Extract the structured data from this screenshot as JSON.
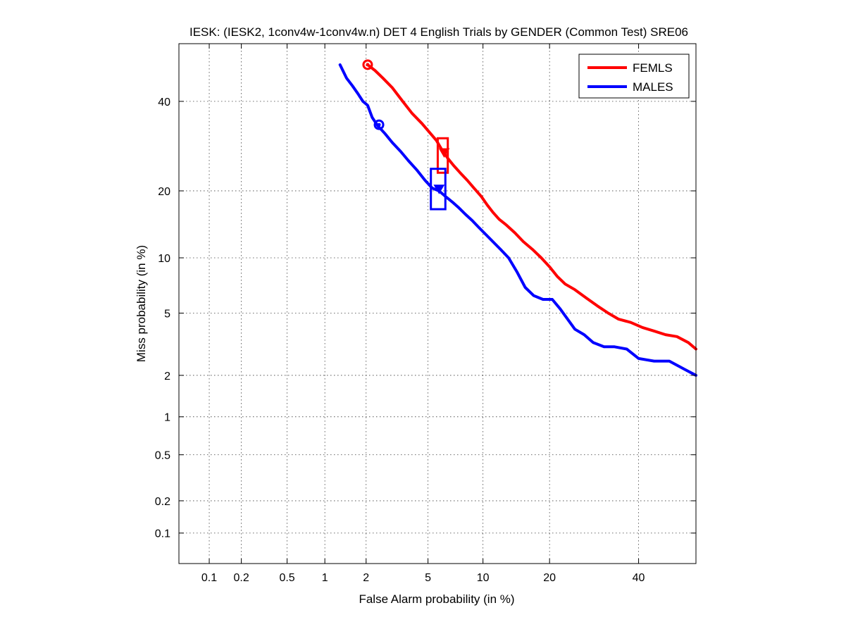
{
  "chart_data": {
    "type": "line",
    "title": "IESK: (IESK2, 1conv4w-1conv4w.n) DET 4 English Trials by GENDER (Common Test) SRE06",
    "xlabel": "False Alarm probability (in %)",
    "ylabel": "Miss probability (in %)",
    "x_scale": "probit",
    "y_scale": "probit",
    "xlim": [
      0.05,
      55
    ],
    "ylim": [
      0.05,
      55
    ],
    "grid": true,
    "legend_position": "top-right",
    "x_ticks": [
      0.1,
      0.2,
      0.5,
      1,
      2,
      5,
      10,
      20,
      40
    ],
    "x_tick_labels": [
      "0.1",
      "0.2",
      "0.5",
      "1",
      "2",
      "5",
      "10",
      "20",
      "40"
    ],
    "y_ticks": [
      0.1,
      0.2,
      0.5,
      1,
      2,
      5,
      10,
      20,
      40
    ],
    "y_tick_labels": [
      "0.1",
      "0.2",
      "0.5",
      "1",
      "2",
      "5",
      "10",
      "20",
      "40"
    ],
    "series": [
      {
        "name": "FEMLS",
        "color": "#ff0000",
        "x": [
          2.05,
          2.3,
          2.6,
          3.0,
          3.5,
          4.0,
          4.6,
          5.2,
          5.6,
          6.0,
          6.5,
          7.0,
          7.6,
          8.3,
          9.0,
          9.8,
          10.5,
          11.2,
          12.0,
          13.0,
          14.2,
          15.5,
          17.0,
          18.5,
          20.0,
          21.5,
          23.0,
          25.0,
          27.5,
          30.0,
          32.5,
          35.0,
          38.0,
          41.0,
          44.0,
          47.0,
          50.0,
          53.0,
          55.0
        ],
        "y": [
          49.5,
          48.0,
          46.0,
          43.5,
          40.0,
          37.0,
          34.5,
          32.0,
          30.5,
          28.5,
          26.5,
          25.0,
          23.5,
          22.0,
          20.5,
          19.0,
          17.5,
          16.3,
          15.2,
          14.3,
          13.2,
          12.0,
          11.0,
          10.0,
          9.0,
          8.0,
          7.3,
          6.8,
          6.1,
          5.5,
          5.0,
          4.6,
          4.4,
          4.1,
          3.9,
          3.7,
          3.6,
          3.3,
          3.0
        ]
      },
      {
        "name": "MALES",
        "color": "#0000ff",
        "x": [
          1.3,
          1.45,
          1.6,
          1.75,
          1.9,
          2.05,
          2.2,
          2.4,
          2.7,
          3.0,
          3.4,
          3.8,
          4.3,
          4.8,
          5.3,
          5.8,
          6.3,
          6.9,
          7.5,
          8.1,
          8.8,
          9.5,
          10.3,
          11.2,
          12.2,
          13.3,
          14.5,
          15.8,
          17.2,
          18.8,
          20.5,
          22.0,
          23.5,
          25.0,
          27.0,
          29.0,
          31.5,
          34.0,
          37.0,
          40.0,
          44.0,
          48.0,
          52.0,
          55.0
        ],
        "y": [
          49.5,
          46.0,
          44.0,
          42.0,
          40.0,
          39.0,
          36.0,
          34.0,
          32.0,
          30.0,
          28.0,
          26.0,
          24.0,
          22.0,
          20.5,
          20.0,
          19.0,
          18.0,
          17.0,
          16.0,
          15.0,
          14.0,
          13.0,
          12.0,
          11.0,
          10.0,
          8.5,
          7.0,
          6.3,
          6.0,
          6.0,
          5.3,
          4.6,
          4.0,
          3.7,
          3.3,
          3.1,
          3.1,
          3.0,
          2.6,
          2.5,
          2.5,
          2.2,
          2.0
        ]
      }
    ],
    "markers": [
      {
        "series": "FEMLS",
        "kind": "circle",
        "x": 2.05,
        "y": 49.5
      },
      {
        "series": "FEMLS",
        "kind": "triangle",
        "x": 6.2,
        "y": 27.7
      },
      {
        "series": "FEMLS",
        "kind": "box",
        "x0": 5.7,
        "x1": 6.5,
        "y0": 23.5,
        "y1": 31.0
      },
      {
        "series": "MALES",
        "kind": "circle",
        "x": 2.45,
        "y": 34.2
      },
      {
        "series": "MALES",
        "kind": "triangle",
        "x": 5.8,
        "y": 20.3
      },
      {
        "series": "MALES",
        "kind": "box",
        "x0": 5.2,
        "x1": 6.3,
        "y0": 16.8,
        "y1": 24.3
      }
    ]
  }
}
